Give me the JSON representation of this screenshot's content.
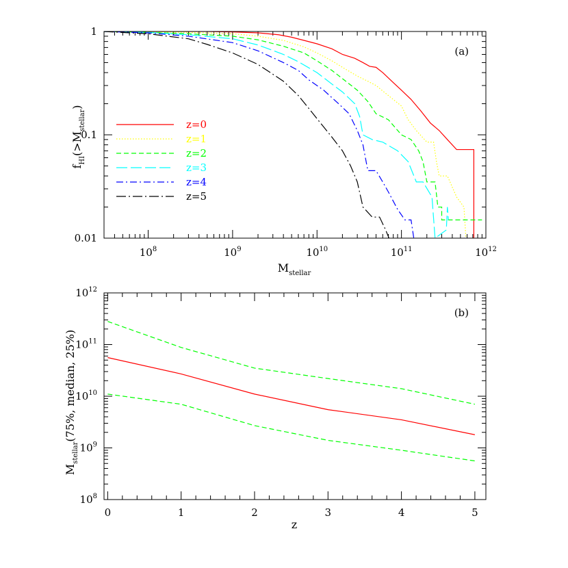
{
  "chart_data": [
    {
      "type": "line",
      "panel_label": "(a)",
      "xscale": "log",
      "yscale": "log",
      "xlim": [
        30000000,
        1000000000000
      ],
      "ylim": [
        0.01,
        1
      ],
      "xlabel": {
        "main": "M",
        "sub": "stellar"
      },
      "ylabel": {
        "prefix": "f",
        "sub1": "HI",
        "mid": "(>M",
        "sub2": "stellar",
        "suffix": ")"
      },
      "x_ticks": [
        {
          "base": "10",
          "exp": "8"
        },
        {
          "base": "10",
          "exp": "9"
        },
        {
          "base": "10",
          "exp": "10"
        },
        {
          "base": "10",
          "exp": "11"
        },
        {
          "base": "10",
          "exp": "12"
        }
      ],
      "y_ticks": [
        "0.01",
        "0.1",
        "1"
      ],
      "legend_position": "left-center",
      "series": [
        {
          "name": "z=0",
          "color": "#ff0000",
          "dash": "solid",
          "x": [
            30000000.0,
            100000000.0,
            500000000.0,
            1000000000.0,
            2000000000.0,
            3500000000.0,
            5000000000.0,
            7000000000.0,
            10000000000.0,
            15000000000.0,
            20000000000.0,
            28000000000.0,
            35000000000.0,
            42000000000.0,
            50000000000.0,
            60000000000.0,
            80000000000.0,
            100000000000.0,
            130000000000.0,
            170000000000.0,
            220000000000.0,
            280000000000.0,
            350000000000.0,
            450000000000.0,
            530000000000.0,
            580000000000.0,
            720000000000.0,
            720000000000.0
          ],
          "y": [
            1.0,
            1.0,
            1.0,
            0.99,
            0.97,
            0.93,
            0.88,
            0.82,
            0.76,
            0.68,
            0.6,
            0.55,
            0.5,
            0.46,
            0.45,
            0.4,
            0.32,
            0.27,
            0.22,
            0.17,
            0.13,
            0.11,
            0.09,
            0.072,
            0.072,
            0.072,
            0.072,
            0.01
          ]
        },
        {
          "name": "z=1",
          "color": "#ffff00",
          "dash": "dotted",
          "x": [
            30000000.0,
            100000000.0,
            300000000.0,
            1000000000.0,
            2000000000.0,
            4000000000.0,
            7000000000.0,
            10000000000.0,
            15000000000.0,
            20000000000.0,
            30000000000.0,
            40000000000.0,
            50000000000.0,
            70000000000.0,
            100000000000.0,
            120000000000.0,
            150000000000.0,
            200000000000.0,
            240000000000.0,
            260000000000.0,
            280000000000.0,
            350000000000.0,
            450000000000.0,
            550000000000.0,
            580000000000.0
          ],
          "y": [
            1.0,
            0.99,
            0.98,
            0.95,
            0.9,
            0.82,
            0.71,
            0.62,
            0.52,
            0.45,
            0.37,
            0.33,
            0.3,
            0.24,
            0.19,
            0.14,
            0.11,
            0.085,
            0.085,
            0.055,
            0.04,
            0.04,
            0.025,
            0.02,
            0.01
          ]
        },
        {
          "name": "z=2",
          "color": "#00ff00",
          "dash": "dashed",
          "x": [
            30000000.0,
            100000000.0,
            300000000.0,
            1000000000.0,
            2000000000.0,
            4000000000.0,
            7000000000.0,
            10000000000.0,
            15000000000.0,
            20000000000.0,
            30000000000.0,
            40000000000.0,
            50000000000.0,
            70000000000.0,
            100000000000.0,
            130000000000.0,
            160000000000.0,
            180000000000.0,
            200000000000.0,
            250000000000.0,
            270000000000.0,
            300000000000.0,
            300000000000.0,
            600000000000.0,
            900000000000.0
          ],
          "y": [
            1.0,
            0.98,
            0.95,
            0.9,
            0.83,
            0.72,
            0.62,
            0.52,
            0.42,
            0.35,
            0.27,
            0.21,
            0.16,
            0.14,
            0.1,
            0.09,
            0.07,
            0.055,
            0.035,
            0.035,
            0.02,
            0.02,
            0.015,
            0.015,
            0.015
          ]
        },
        {
          "name": "z=3",
          "color": "#00ffff",
          "dash": "longdash",
          "x": [
            30000000.0,
            100000000.0,
            300000000.0,
            1000000000.0,
            2000000000.0,
            4000000000.0,
            6000000000.0,
            10000000000.0,
            15000000000.0,
            20000000000.0,
            28000000000.0,
            32000000000.0,
            35000000000.0,
            45000000000.0,
            60000000000.0,
            90000000000.0,
            120000000000.0,
            150000000000.0,
            180000000000.0,
            230000000000.0,
            250000000000.0,
            340000000000.0,
            350000000000.0,
            360000000000.0
          ],
          "y": [
            1.0,
            0.98,
            0.93,
            0.85,
            0.74,
            0.6,
            0.51,
            0.4,
            0.31,
            0.26,
            0.2,
            0.15,
            0.1,
            0.09,
            0.085,
            0.07,
            0.055,
            0.035,
            0.035,
            0.025,
            0.01,
            0.012,
            0.02,
            0.015
          ]
        },
        {
          "name": "z=4",
          "color": "#0000ff",
          "dash": "dashdot",
          "x": [
            30000000.0,
            100000000.0,
            300000000.0,
            1000000000.0,
            2000000000.0,
            4000000000.0,
            6000000000.0,
            8000000000.0,
            12000000000.0,
            18000000000.0,
            24000000000.0,
            30000000000.0,
            35000000000.0,
            40000000000.0,
            50000000000.0,
            60000000000.0,
            70000000000.0,
            90000000000.0,
            110000000000.0,
            130000000000.0,
            140000000000.0
          ],
          "y": [
            1.0,
            0.97,
            0.9,
            0.78,
            0.65,
            0.5,
            0.42,
            0.34,
            0.27,
            0.2,
            0.16,
            0.11,
            0.08,
            0.045,
            0.045,
            0.035,
            0.028,
            0.019,
            0.015,
            0.015,
            0.01
          ]
        },
        {
          "name": "z=5",
          "color": "#000000",
          "dash": "dashdotlong",
          "x": [
            30000000.0,
            100000000.0,
            300000000.0,
            500000000.0,
            1000000000.0,
            2000000000.0,
            4000000000.0,
            6000000000.0,
            8000000000.0,
            11000000000.0,
            15000000000.0,
            20000000000.0,
            25000000000.0,
            30000000000.0,
            35000000000.0,
            45000000000.0,
            55000000000.0,
            65000000000.0,
            75000000000.0
          ],
          "y": [
            1.0,
            0.95,
            0.85,
            0.75,
            0.62,
            0.48,
            0.33,
            0.24,
            0.18,
            0.13,
            0.095,
            0.07,
            0.05,
            0.035,
            0.02,
            0.016,
            0.016,
            0.012,
            0.009
          ]
        }
      ]
    },
    {
      "type": "line",
      "panel_label": "(b)",
      "xscale": "linear",
      "yscale": "log",
      "xlim": [
        -0.05,
        5.15
      ],
      "ylim": [
        100000000,
        1000000000000
      ],
      "xlabel": {
        "main": "z"
      },
      "ylabel": {
        "main": "M",
        "sub": "stellar",
        "suffix": "(75%, median, 25%)"
      },
      "x_ticks": [
        "0",
        "1",
        "2",
        "3",
        "4",
        "5"
      ],
      "y_ticks": [
        {
          "base": "10",
          "exp": "8"
        },
        {
          "base": "10",
          "exp": "9"
        },
        {
          "base": "10",
          "exp": "10"
        },
        {
          "base": "10",
          "exp": "11"
        },
        {
          "base": "10",
          "exp": "12"
        }
      ],
      "series": [
        {
          "color": "#00ff00",
          "dash": "dashed",
          "x": [
            0,
            1,
            2,
            3,
            4,
            5
          ],
          "y": [
            280000000000.0,
            88000000000.0,
            35000000000.0,
            22000000000.0,
            14000000000.0,
            7000000000.0
          ]
        },
        {
          "color": "#ff0000",
          "dash": "solid",
          "x": [
            0,
            1,
            2,
            3,
            4,
            5
          ],
          "y": [
            56000000000.0,
            27000000000.0,
            11000000000.0,
            5500000000.0,
            3500000000.0,
            1800000000.0
          ]
        },
        {
          "color": "#00ff00",
          "dash": "dashed",
          "x": [
            0,
            1,
            2,
            3,
            4,
            5
          ],
          "y": [
            11000000000.0,
            7000000000.0,
            2700000000.0,
            1400000000.0,
            900000000.0,
            560000000.0
          ]
        }
      ]
    }
  ]
}
